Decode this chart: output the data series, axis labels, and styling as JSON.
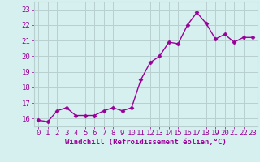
{
  "x": [
    0,
    1,
    2,
    3,
    4,
    5,
    6,
    7,
    8,
    9,
    10,
    11,
    12,
    13,
    14,
    15,
    16,
    17,
    18,
    19,
    20,
    21,
    22,
    23
  ],
  "y": [
    15.9,
    15.8,
    16.5,
    16.7,
    16.2,
    16.2,
    16.2,
    16.5,
    16.7,
    16.5,
    16.7,
    18.5,
    19.6,
    20.0,
    20.9,
    20.8,
    22.0,
    22.8,
    22.1,
    21.1,
    21.4,
    20.9,
    21.2,
    21.2
  ],
  "line_color": "#990099",
  "marker": "D",
  "marker_size": 2.5,
  "bg_color": "#d6f0f0",
  "grid_color": "#b8d0d0",
  "xlabel": "Windchill (Refroidissement éolien,°C)",
  "xlabel_color": "#990099",
  "xlabel_fontsize": 6.5,
  "ylabel_ticks": [
    16,
    17,
    18,
    19,
    20,
    21,
    22,
    23
  ],
  "ylim": [
    15.5,
    23.5
  ],
  "xlim": [
    -0.5,
    23.5
  ],
  "tick_color": "#990099",
  "tick_fontsize": 6.5,
  "line_width": 1.0
}
